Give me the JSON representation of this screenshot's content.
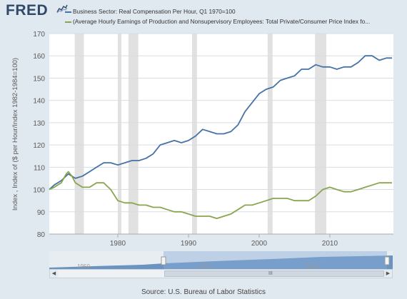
{
  "header": {
    "logo": "FRED",
    "logo_icon": "fred-chart-icon"
  },
  "legend": [
    {
      "label": "Business Sector: Real Compensation Per Hour, Q1 1970=100",
      "color": "#4572a7"
    },
    {
      "label": "(Average Hourly Earnings of Production and Nonsupervisory Employees: Total Private/Consumer Price Index fo...",
      "color": "#89a54e"
    }
  ],
  "source": "Source: U.S. Bureau of Labor Statistics",
  "navigator": {
    "ticks": [
      "1950",
      "1975",
      "2000"
    ],
    "left_arrow": "◀",
    "right_arrow": "▶",
    "grip": "III"
  },
  "chart_data": {
    "type": "line",
    "ylabel": "Index , Index of ($ per Hour/Index 1982-1984=100)",
    "xlabel": "",
    "xlim": [
      1970.3,
      2019.0
    ],
    "ylim": [
      80,
      170
    ],
    "x_ticks": [
      1980,
      1990,
      2000,
      2010
    ],
    "y_ticks": [
      80,
      90,
      100,
      110,
      120,
      130,
      140,
      150,
      160,
      170
    ],
    "grid": true,
    "recessions": [
      [
        1973.9,
        1975.2
      ],
      [
        1980.0,
        1980.5
      ],
      [
        1981.5,
        1982.9
      ],
      [
        1990.5,
        1991.2
      ],
      [
        2001.2,
        2001.9
      ],
      [
        2007.9,
        2009.5
      ]
    ],
    "series": [
      {
        "name": "Business Sector: Real Compensation Per Hour, Q1 1970=100",
        "color": "#4572a7",
        "x": [
          1970.3,
          1971,
          1972,
          1973,
          1973.5,
          1974,
          1975,
          1976,
          1977,
          1978,
          1979,
          1980,
          1981,
          1982,
          1983,
          1984,
          1985,
          1986,
          1987,
          1988,
          1989,
          1990,
          1991,
          1992,
          1993,
          1994,
          1995,
          1996,
          1997,
          1998,
          1999,
          2000,
          2001,
          2002,
          2003,
          2004,
          2005,
          2006,
          2007,
          2008,
          2009,
          2010,
          2011,
          2012,
          2013,
          2014,
          2015,
          2016,
          2017,
          2018,
          2018.8
        ],
        "y": [
          100,
          102,
          104,
          107,
          106,
          105,
          106,
          108,
          110,
          112,
          112,
          111,
          112,
          113,
          113,
          114,
          116,
          120,
          121,
          122,
          121,
          122,
          124,
          127,
          126,
          125,
          125,
          126,
          129,
          135,
          139,
          143,
          145,
          146,
          149,
          150,
          151,
          154,
          154,
          156,
          155,
          155,
          154,
          155,
          155,
          157,
          160,
          160,
          158,
          159,
          159
        ]
      },
      {
        "name": "(Average Hourly Earnings of Production and Nonsupervisory Employees: Total Private/Consumer Price Index fo...",
        "color": "#89a54e",
        "x": [
          1970.3,
          1971,
          1972,
          1972.7,
          1973,
          1973.5,
          1974,
          1975,
          1976,
          1977,
          1978,
          1979,
          1980,
          1981,
          1982,
          1983,
          1984,
          1985,
          1986,
          1987,
          1988,
          1989,
          1990,
          1991,
          1992,
          1993,
          1994,
          1995,
          1996,
          1997,
          1998,
          1999,
          2000,
          2001,
          2002,
          2003,
          2004,
          2005,
          2006,
          2007,
          2008,
          2009,
          2010,
          2011,
          2012,
          2013,
          2014,
          2015,
          2016,
          2017,
          2018,
          2018.8
        ],
        "y": [
          100,
          101,
          103,
          107,
          108,
          106,
          103,
          101,
          101,
          103,
          103,
          100,
          95,
          94,
          94,
          93,
          93,
          92,
          92,
          91,
          90,
          90,
          89,
          88,
          88,
          88,
          87,
          88,
          89,
          91,
          93,
          93,
          94,
          95,
          96,
          96,
          96,
          95,
          95,
          95,
          97,
          100,
          101,
          100,
          99,
          99,
          100,
          101,
          102,
          103,
          103,
          103
        ]
      }
    ]
  }
}
